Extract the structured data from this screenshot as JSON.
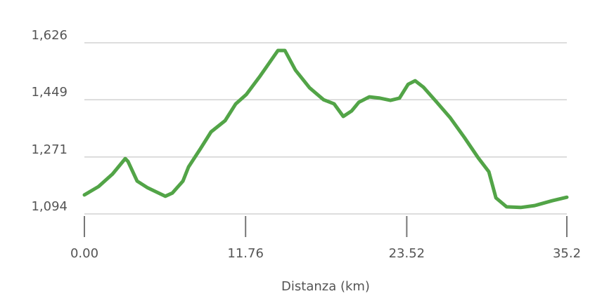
{
  "chart_data": {
    "type": "line",
    "x_label": "Distanza (km)",
    "x": [
      0,
      1.03,
      2.05,
      2.98,
      3.18,
      3.85,
      4.62,
      5.9,
      6.42,
      7.19,
      7.6,
      8.47,
      9.24,
      10.27,
      11.04,
      11.81,
      12.83,
      14.12,
      14.63,
      15.4,
      16.43,
      17.45,
      18.22,
      18.89,
      19.5,
      20.02,
      20.79,
      21.56,
      22.33,
      22.99,
      23.62,
      24.13,
      24.74,
      25.67,
      26.69,
      27.72,
      28.74,
      29.51,
      30.03,
      30.8,
      31.83,
      32.85,
      34.13,
      35.2
    ],
    "series": [
      {
        "color": "#52a447",
        "values": [
          1153,
          1179,
          1218,
          1266,
          1257,
          1196,
          1175,
          1149,
          1159,
          1196,
          1240,
          1297,
          1349,
          1384,
          1436,
          1465,
          1523,
          1602,
          1602,
          1541,
          1486,
          1449,
          1436,
          1397,
          1414,
          1441,
          1458,
          1454,
          1447,
          1454,
          1497,
          1508,
          1488,
          1443,
          1393,
          1332,
          1268,
          1225,
          1144,
          1116,
          1114,
          1120,
          1135,
          1146
        ]
      }
    ],
    "xlim": [
      0,
      35.2
    ],
    "xticks": [
      {
        "value": 0,
        "label": "0.00"
      },
      11.76,
      23.52,
      35.2
    ],
    "ylim": [
      1094,
      1626
    ],
    "yticks": [
      {
        "value": 1094,
        "label": "1,094"
      },
      {
        "value": 1271,
        "label": "1,271"
      },
      {
        "value": 1449,
        "label": "1,449"
      },
      {
        "value": 1626,
        "label": "1,626"
      }
    ],
    "grid": true
  }
}
